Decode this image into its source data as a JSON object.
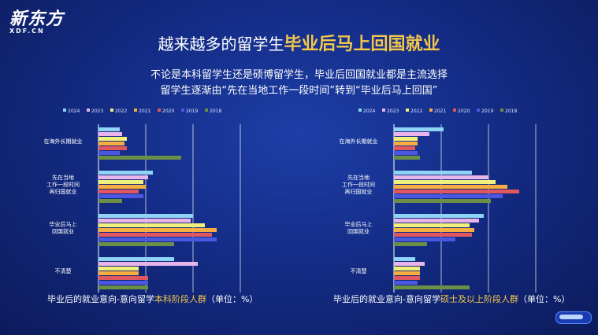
{
  "logo": {
    "main": "新东方",
    "sub": "XDF.CN"
  },
  "title": {
    "prefix": "越来越多的留学生",
    "highlight": "毕业后马上回国就业"
  },
  "subtitle": {
    "line1": "不论是本科留学生还是硕博留学生，毕业后回国就业都是主流选择",
    "line2": "留学生逐渐由“先在当地工作一段时间”转到“毕业后马上回国”"
  },
  "captions": {
    "left": {
      "prefix": "毕业后的就业意向-意向留学",
      "highlight": "本科阶段人群",
      "suffix": "（单位：%）"
    },
    "right": {
      "prefix": "毕业后的就业意向-意向留学",
      "highlight": "硕士及以上阶段人群",
      "suffix": "（单位：%）"
    }
  },
  "chart_data": [
    {
      "type": "bar",
      "orientation": "horizontal",
      "categories": [
        "在海外长期就业",
        "先在当地工作一段时间再归国就业",
        "毕业后马上回国就业",
        "不清楚"
      ],
      "category_labels": [
        [
          "在海外长期就业"
        ],
        [
          "先在当地",
          "工作一段时间",
          "再归国就业"
        ],
        [
          "毕业后马上",
          "回国就业"
        ],
        [
          "不清楚"
        ]
      ],
      "series": [
        {
          "name": "2024",
          "color": "#8fd3f5",
          "values": [
            9,
            23,
            40,
            32
          ]
        },
        {
          "name": "2023",
          "color": "#e8b4ea",
          "values": [
            10,
            21,
            39,
            42
          ]
        },
        {
          "name": "2022",
          "color": "#f1f07a",
          "values": [
            12,
            19,
            45,
            17
          ]
        },
        {
          "name": "2021",
          "color": "#f7ad3f",
          "values": [
            11,
            20,
            50,
            17
          ]
        },
        {
          "name": "2020",
          "color": "#e0585f",
          "values": [
            12,
            17,
            48,
            21
          ]
        },
        {
          "name": "2019",
          "color": "#4a58e0",
          "values": [
            9,
            19,
            50,
            21
          ]
        },
        {
          "name": "2018",
          "color": "#6b8f47",
          "values": [
            35,
            10,
            32,
            21
          ]
        }
      ],
      "xlim": [
        0,
        70
      ],
      "gridlines": [
        20,
        40,
        60
      ]
    },
    {
      "type": "bar",
      "orientation": "horizontal",
      "categories": [
        "在海外长期就业",
        "先在当地工作一段时间再归国就业",
        "毕业后马上回国就业",
        "不清楚"
      ],
      "category_labels": [
        [
          "在海外长期就业"
        ],
        [
          "先在当地",
          "工作一段时间",
          "再归国就业"
        ],
        [
          "毕业后马上",
          "回国就业"
        ],
        [
          "不清楚"
        ]
      ],
      "series": [
        {
          "name": "2024",
          "color": "#8fd3f5",
          "values": [
            21,
            33,
            38,
            9
          ]
        },
        {
          "name": "2023",
          "color": "#e8b4ea",
          "values": [
            15,
            40,
            36,
            13
          ]
        },
        {
          "name": "2022",
          "color": "#f1f07a",
          "values": [
            10,
            43,
            32,
            11
          ]
        },
        {
          "name": "2021",
          "color": "#f7ad3f",
          "values": [
            10,
            48,
            34,
            11
          ]
        },
        {
          "name": "2020",
          "color": "#e0585f",
          "values": [
            9,
            53,
            33,
            11
          ]
        },
        {
          "name": "2019",
          "color": "#4a58e0",
          "values": [
            10,
            46,
            26,
            10
          ]
        },
        {
          "name": "2018",
          "color": "#6b8f47",
          "values": [
            11,
            41,
            14,
            32
          ]
        }
      ],
      "xlim": [
        0,
        70
      ],
      "gridlines": [
        20,
        40,
        60
      ]
    }
  ]
}
